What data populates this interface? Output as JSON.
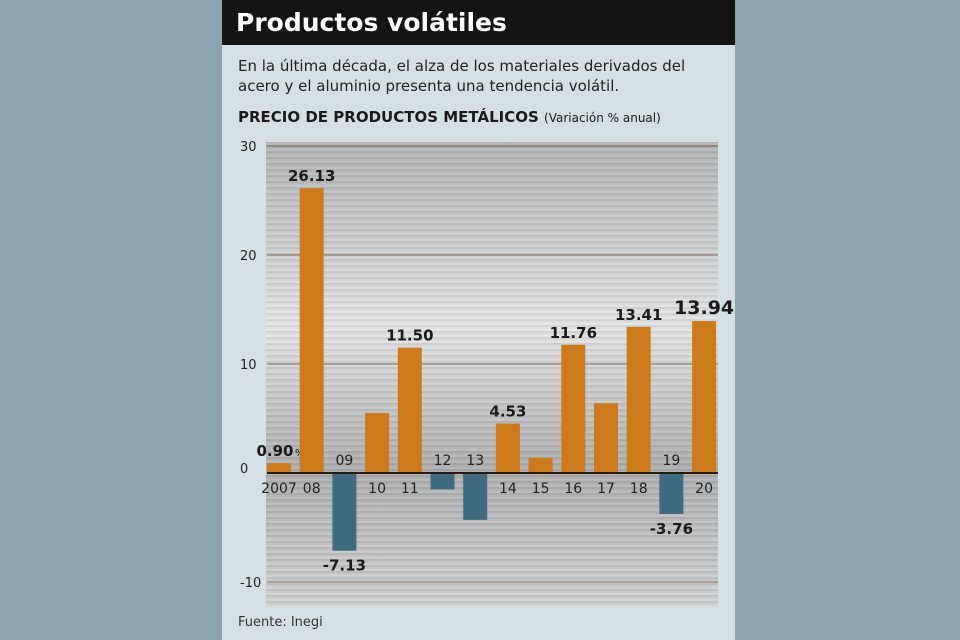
{
  "title": "Productos volátiles",
  "description": "En la última década, el alza de los materiales derivados del acero y el aluminio presenta una tendencia volátil.",
  "source": "Fuente: Inegi",
  "chart_data": {
    "type": "bar",
    "title": "PRECIO DE PRODUCTOS METÁLICOS",
    "subtitle": "(Variación % anual)",
    "categories": [
      "2007",
      "08",
      "09",
      "10",
      "11",
      "12",
      "13",
      "14",
      "15",
      "16",
      "17",
      "18",
      "19",
      "20"
    ],
    "values": [
      0.9,
      26.13,
      -7.13,
      5.5,
      11.5,
      -1.5,
      -4.3,
      4.53,
      1.4,
      11.76,
      6.4,
      13.41,
      -3.76,
      13.94
    ],
    "data_labels": [
      "0.90",
      "26.13",
      "-7.13",
      "",
      "11.50",
      "",
      "",
      "4.53",
      "",
      "11.76",
      "",
      "13.41",
      "-3.76",
      "13.94"
    ],
    "first_label_unit": "%",
    "yticks": [
      30,
      20,
      10,
      0,
      -10
    ],
    "ylim": [
      -10,
      30
    ],
    "grid": true,
    "colors": {
      "positive": "#cc7a1a",
      "negative": "#3f6b7e"
    }
  }
}
